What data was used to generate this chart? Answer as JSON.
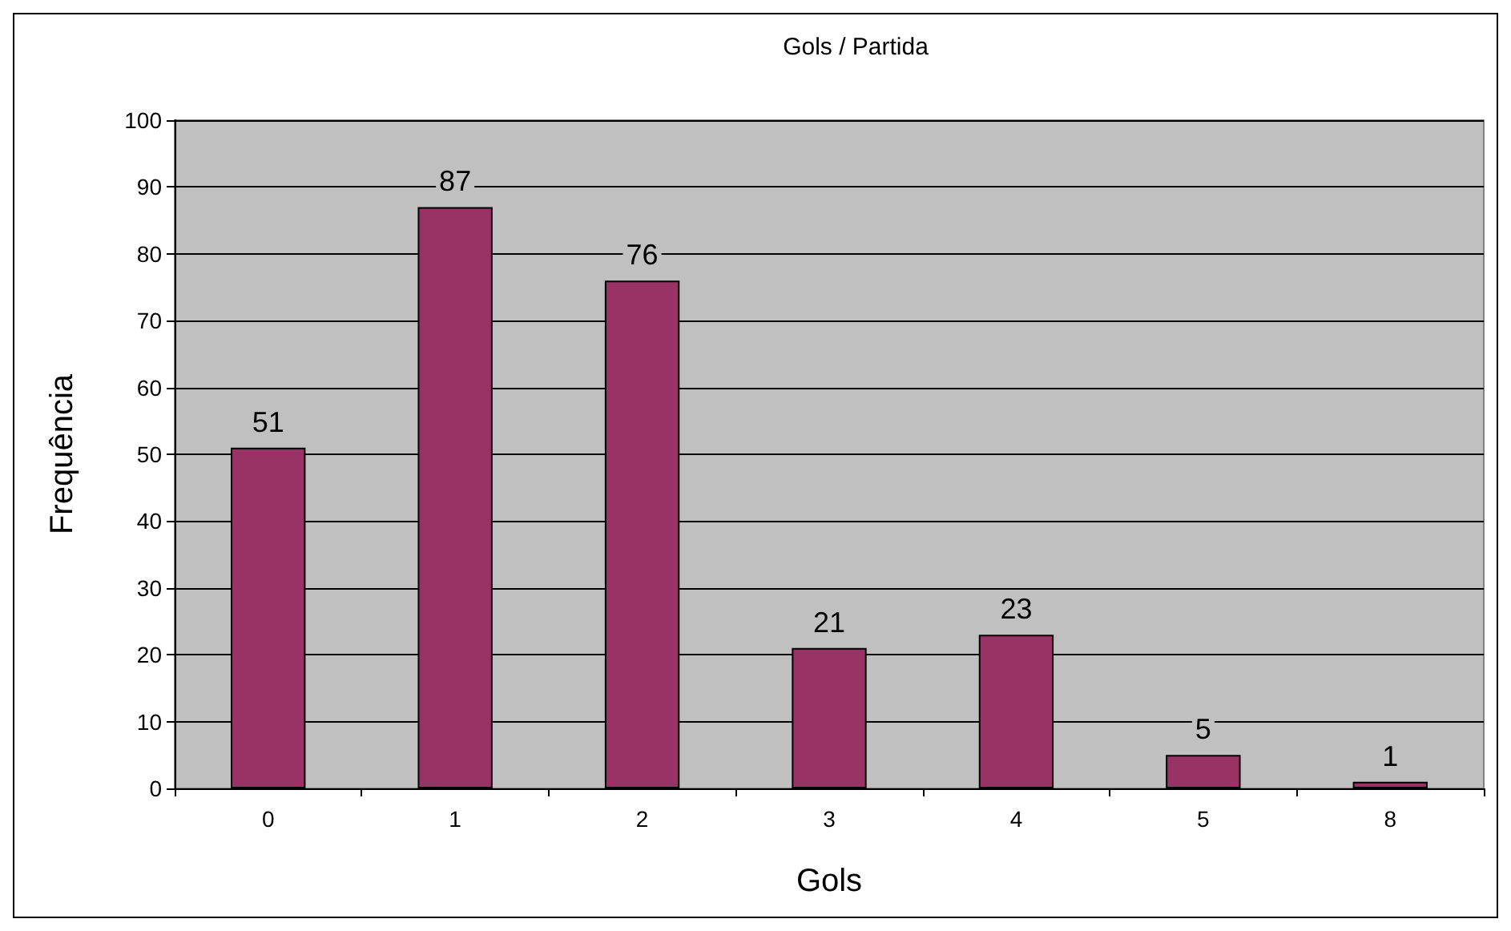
{
  "chart_data": {
    "type": "bar",
    "title": "Gols / Partida",
    "xlabel": "Gols",
    "ylabel": "Frequência",
    "categories": [
      "0",
      "1",
      "2",
      "3",
      "4",
      "5",
      "8"
    ],
    "values": [
      51,
      87,
      76,
      21,
      23,
      5,
      1
    ],
    "color": "#993366",
    "ylim": [
      0,
      100
    ],
    "yticks": [
      0,
      10,
      20,
      30,
      40,
      50,
      60,
      70,
      80,
      90,
      100
    ],
    "grid": "y",
    "data_labels": true
  }
}
